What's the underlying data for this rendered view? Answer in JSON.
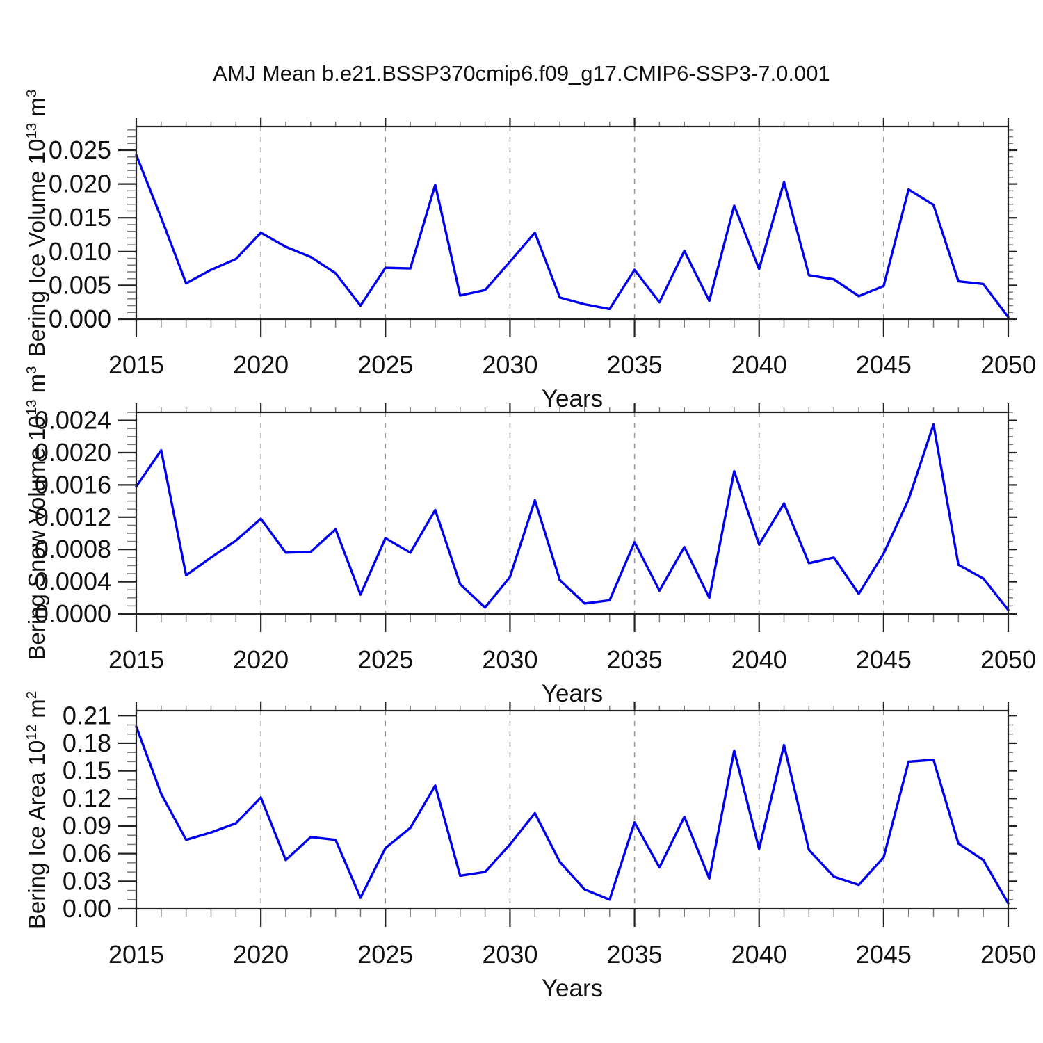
{
  "chart_data": {
    "type": "line",
    "title": "AMJ Mean b.e21.BSSP370cmip6.f09_g17.CMIP6-SSP3-7.0.001",
    "xlabel": "Years",
    "x": [
      2015,
      2016,
      2017,
      2018,
      2019,
      2020,
      2021,
      2022,
      2023,
      2024,
      2025,
      2026,
      2027,
      2028,
      2029,
      2030,
      2031,
      2032,
      2033,
      2034,
      2035,
      2036,
      2037,
      2038,
      2039,
      2040,
      2041,
      2042,
      2043,
      2044,
      2045,
      2046,
      2047,
      2048,
      2049,
      2050
    ],
    "x_major_ticks": [
      2015,
      2020,
      2025,
      2030,
      2035,
      2040,
      2045,
      2050
    ],
    "x_minor_step_years": 1,
    "grid_years": [
      2020,
      2025,
      2030,
      2035,
      2040,
      2045
    ],
    "grid_style": "dashed-vertical",
    "legend": "none",
    "colors": {
      "line": "#0000ee",
      "frame": "#222222",
      "major_tick": "#222222",
      "minor_tick": "#777777",
      "grid": "#999999",
      "text": "#111111",
      "background": "#ffffff"
    },
    "panels": [
      {
        "name": "bering-ice-volume",
        "ylabel_main": "Bering Ice Volume 10",
        "ylabel_exp": "13",
        "ylabel_unit": " m",
        "ylabel_unit_exp": "3",
        "xlabel": "Years",
        "ylim": [
          0,
          0.0285
        ],
        "ytick_values": [
          0.0,
          0.005,
          0.01,
          0.015,
          0.02,
          0.025
        ],
        "ytick_labels": [
          "0.000",
          "0.005",
          "0.010",
          "0.015",
          "0.020",
          "0.025"
        ],
        "y_minor_step": 0.001,
        "values": [
          0.0243,
          0.015,
          0.0053,
          0.0073,
          0.0089,
          0.0128,
          0.0107,
          0.0092,
          0.0068,
          0.002,
          0.0076,
          0.0075,
          0.0199,
          0.0035,
          0.0043,
          0.0085,
          0.0128,
          0.0032,
          0.0022,
          0.0015,
          0.0073,
          0.0025,
          0.0101,
          0.0027,
          0.0168,
          0.0074,
          0.0203,
          0.0065,
          0.0059,
          0.0034,
          0.0049,
          0.0192,
          0.0169,
          0.0056,
          0.0052,
          0.0003
        ]
      },
      {
        "name": "bering-snow-volume",
        "ylabel_main": "Bering Snow Volume 10",
        "ylabel_exp": "13",
        "ylabel_unit": " m",
        "ylabel_unit_exp": "3",
        "xlabel": "Years",
        "ylim": [
          0,
          0.0025
        ],
        "ytick_values": [
          0.0,
          0.0004,
          0.0008,
          0.0012,
          0.0016,
          0.002,
          0.0024
        ],
        "ytick_labels": [
          "0.0000",
          "0.0004",
          "0.0008",
          "0.0012",
          "0.0016",
          "0.0020",
          "0.0024"
        ],
        "y_minor_step": 0.0001,
        "values": [
          0.00158,
          0.00203,
          0.00048,
          0.0007,
          0.00091,
          0.00118,
          0.00076,
          0.00077,
          0.00105,
          0.00024,
          0.00094,
          0.00076,
          0.00129,
          0.00037,
          8e-05,
          0.00046,
          0.00141,
          0.00042,
          0.00013,
          0.00017,
          0.00089,
          0.00029,
          0.00083,
          0.0002,
          0.00177,
          0.00086,
          0.00137,
          0.00063,
          0.0007,
          0.00025,
          0.00075,
          0.00142,
          0.00235,
          0.00061,
          0.00044,
          5e-05
        ]
      },
      {
        "name": "bering-ice-area",
        "ylabel_main": "Bering Ice Area 10",
        "ylabel_exp": "12",
        "ylabel_unit": " m",
        "ylabel_unit_exp": "2",
        "xlabel": "Years",
        "ylim": [
          0,
          0.2155
        ],
        "ytick_values": [
          0.0,
          0.03,
          0.06,
          0.09,
          0.12,
          0.15,
          0.18,
          0.21
        ],
        "ytick_labels": [
          "0.00",
          "0.03",
          "0.06",
          "0.09",
          "0.12",
          "0.15",
          "0.18",
          "0.21"
        ],
        "y_minor_step": 0.01,
        "values": [
          0.198,
          0.125,
          0.075,
          0.083,
          0.093,
          0.121,
          0.053,
          0.078,
          0.075,
          0.012,
          0.066,
          0.088,
          0.134,
          0.036,
          0.04,
          0.07,
          0.104,
          0.051,
          0.021,
          0.01,
          0.094,
          0.045,
          0.1,
          0.033,
          0.172,
          0.065,
          0.178,
          0.064,
          0.035,
          0.026,
          0.056,
          0.16,
          0.162,
          0.071,
          0.053,
          0.006
        ]
      }
    ]
  }
}
